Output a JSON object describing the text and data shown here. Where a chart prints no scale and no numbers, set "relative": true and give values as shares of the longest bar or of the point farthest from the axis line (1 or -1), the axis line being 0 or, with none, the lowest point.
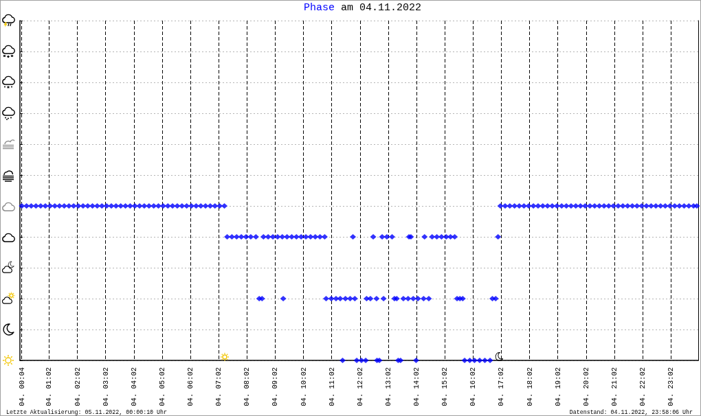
{
  "chart_data": {
    "type": "scatter",
    "title": "am 04.11.2022",
    "relative": true,
    "marker": "diamond",
    "grid": true,
    "legend": "top",
    "annotations": [
      "Letzte Aktualisierung: 05.11.2022, 00:00:10 Uhr",
      "Datenstand: 04.11.2022, 23:58:06 Uhr"
    ],
    "xlim": [
      "2022-11-04T00:00",
      "2022-11-05T00:00"
    ],
    "xticks": [
      {
        "value": "2022-11-04T00:04",
        "label": "04. 00:04"
      },
      {
        "value": "2022-11-04T01:02",
        "label": "04. 01:02"
      },
      {
        "value": "2022-11-04T02:02",
        "label": "04. 02:02"
      },
      {
        "value": "2022-11-04T03:02",
        "label": "04. 03:02"
      },
      {
        "value": "2022-11-04T04:02",
        "label": "04. 04:02"
      },
      {
        "value": "2022-11-04T05:02",
        "label": "04. 05:02"
      },
      {
        "value": "2022-11-04T06:02",
        "label": "04. 06:02"
      },
      {
        "value": "2022-11-04T07:02",
        "label": "04. 07:02"
      },
      {
        "value": "2022-11-04T08:02",
        "label": "04. 08:02"
      },
      {
        "value": "2022-11-04T09:02",
        "label": "04. 09:02"
      },
      {
        "value": "2022-11-04T10:02",
        "label": "04. 10:02"
      },
      {
        "value": "2022-11-04T11:02",
        "label": "04. 11:02"
      },
      {
        "value": "2022-11-04T12:02",
        "label": "04. 12:02"
      },
      {
        "value": "2022-11-04T13:02",
        "label": "04. 13:02"
      },
      {
        "value": "2022-11-04T14:02",
        "label": "04. 14:02"
      },
      {
        "value": "2022-11-04T15:02",
        "label": "04. 15:02"
      },
      {
        "value": "2022-11-04T16:02",
        "label": "04. 16:02"
      },
      {
        "value": "2022-11-04T17:02",
        "label": "04. 17:02"
      },
      {
        "value": "2022-11-04T18:02",
        "label": "04. 18:02"
      },
      {
        "value": "2022-11-04T19:02",
        "label": "04. 19:02"
      },
      {
        "value": "2022-11-04T20:02",
        "label": "04. 20:02"
      },
      {
        "value": "2022-11-04T21:02",
        "label": "04. 21:02"
      },
      {
        "value": "2022-11-04T22:02",
        "label": "04. 22:02"
      },
      {
        "value": "2022-11-04T23:02",
        "label": "04. 23:02"
      }
    ],
    "x": [
      "2022-11-04T00:04",
      "2022-11-04T00:14",
      "2022-11-04T00:24",
      "2022-11-04T00:34",
      "2022-11-04T00:44",
      "2022-11-04T00:54",
      "2022-11-04T01:04",
      "2022-11-04T01:14",
      "2022-11-04T01:24",
      "2022-11-04T01:34",
      "2022-11-04T01:44",
      "2022-11-04T01:54",
      "2022-11-04T02:04",
      "2022-11-04T02:14",
      "2022-11-04T02:24",
      "2022-11-04T02:34",
      "2022-11-04T02:44",
      "2022-11-04T02:54",
      "2022-11-04T03:04",
      "2022-11-04T03:14",
      "2022-11-04T03:24",
      "2022-11-04T03:34",
      "2022-11-04T03:44",
      "2022-11-04T03:54",
      "2022-11-04T04:04",
      "2022-11-04T04:14",
      "2022-11-04T04:24",
      "2022-11-04T04:34",
      "2022-11-04T04:44",
      "2022-11-04T04:54",
      "2022-11-04T05:04",
      "2022-11-04T05:14",
      "2022-11-04T05:24",
      "2022-11-04T05:34",
      "2022-11-04T05:44",
      "2022-11-04T05:54",
      "2022-11-04T06:04",
      "2022-11-04T06:14",
      "2022-11-04T06:24",
      "2022-11-04T06:34",
      "2022-11-04T06:44",
      "2022-11-04T06:54",
      "2022-11-04T07:04",
      "2022-11-04T07:14",
      "2022-11-04T07:20",
      "2022-11-04T07:30",
      "2022-11-04T07:40",
      "2022-11-04T07:50",
      "2022-11-04T08:00",
      "2022-11-04T08:10",
      "2022-11-04T08:21",
      "2022-11-04T08:28",
      "2022-11-04T08:34",
      "2022-11-04T08:37",
      "2022-11-04T08:47",
      "2022-11-04T08:57",
      "2022-11-04T09:07",
      "2022-11-04T09:17",
      "2022-11-04T09:19",
      "2022-11-04T09:27",
      "2022-11-04T09:37",
      "2022-11-04T09:47",
      "2022-11-04T09:57",
      "2022-11-04T10:07",
      "2022-11-04T10:17",
      "2022-11-04T10:27",
      "2022-11-04T10:37",
      "2022-11-04T10:47",
      "2022-11-04T10:50",
      "2022-11-04T11:01",
      "2022-11-04T11:11",
      "2022-11-04T11:20",
      "2022-11-04T11:25",
      "2022-11-04T11:31",
      "2022-11-04T11:41",
      "2022-11-04T11:47",
      "2022-11-04T11:51",
      "2022-11-04T11:55",
      "2022-11-04T12:05",
      "2022-11-04T12:14",
      "2022-11-04T12:16",
      "2022-11-04T12:24",
      "2022-11-04T12:30",
      "2022-11-04T12:37",
      "2022-11-04T12:38",
      "2022-11-04T12:43",
      "2022-11-04T12:49",
      "2022-11-04T12:52",
      "2022-11-04T12:59",
      "2022-11-04T13:10",
      "2022-11-04T13:15",
      "2022-11-04T13:20",
      "2022-11-04T13:23",
      "2022-11-04T13:28",
      "2022-11-04T13:34",
      "2022-11-04T13:44",
      "2022-11-04T13:46",
      "2022-11-04T13:50",
      "2022-11-04T13:55",
      "2022-11-04T14:01",
      "2022-11-04T14:05",
      "2022-11-04T14:17",
      "2022-11-04T14:19",
      "2022-11-04T14:28",
      "2022-11-04T14:35",
      "2022-11-04T14:45",
      "2022-11-04T14:55",
      "2022-11-04T15:05",
      "2022-11-04T15:14",
      "2022-11-04T15:23",
      "2022-11-04T15:28",
      "2022-11-04T15:34",
      "2022-11-04T15:40",
      "2022-11-04T15:44",
      "2022-11-04T15:55",
      "2022-11-04T16:05",
      "2022-11-04T16:16",
      "2022-11-04T16:27",
      "2022-11-04T16:38",
      "2022-11-04T16:43",
      "2022-11-04T16:50",
      "2022-11-04T16:55",
      "2022-11-04T17:00",
      "2022-11-04T17:10",
      "2022-11-04T17:20",
      "2022-11-04T17:30",
      "2022-11-04T17:40",
      "2022-11-04T17:50",
      "2022-11-04T18:00",
      "2022-11-04T18:10",
      "2022-11-04T18:20",
      "2022-11-04T18:30",
      "2022-11-04T18:40",
      "2022-11-04T18:50",
      "2022-11-04T19:00",
      "2022-11-04T19:10",
      "2022-11-04T19:20",
      "2022-11-04T19:30",
      "2022-11-04T19:40",
      "2022-11-04T19:50",
      "2022-11-04T20:00",
      "2022-11-04T20:10",
      "2022-11-04T20:20",
      "2022-11-04T20:30",
      "2022-11-04T20:40",
      "2022-11-04T20:50",
      "2022-11-04T21:00",
      "2022-11-04T21:10",
      "2022-11-04T21:20",
      "2022-11-04T21:30",
      "2022-11-04T21:40",
      "2022-11-04T21:50",
      "2022-11-04T22:00",
      "2022-11-04T22:10",
      "2022-11-04T22:20",
      "2022-11-04T22:30",
      "2022-11-04T22:40",
      "2022-11-04T22:50",
      "2022-11-04T23:00",
      "2022-11-04T23:10",
      "2022-11-04T23:20",
      "2022-11-04T23:30",
      "2022-11-04T23:40",
      "2022-11-04T23:50",
      "2022-11-04T23:57"
    ],
    "series": [
      {
        "name": "Phase",
        "color": "#0000ff",
        "values": [
          1,
          1,
          1,
          1,
          1,
          1,
          1,
          1,
          1,
          1,
          1,
          1,
          1,
          1,
          1,
          1,
          1,
          1,
          1,
          1,
          1,
          1,
          1,
          1,
          1,
          1,
          1,
          1,
          1,
          1,
          1,
          1,
          1,
          1,
          1,
          1,
          1,
          1,
          1,
          1,
          1,
          1,
          1,
          1,
          0.8,
          0.8,
          0.8,
          0.8,
          0.8,
          0.8,
          0.8,
          0.4,
          0.4,
          0.8,
          0.8,
          0.8,
          0.8,
          0.8,
          0.4,
          0.8,
          0.8,
          0.8,
          0.8,
          0.8,
          0.8,
          0.8,
          0.8,
          0.8,
          0.4,
          0.4,
          0.4,
          0.4,
          0,
          0.4,
          0.4,
          0.8,
          0.4,
          0,
          0,
          0,
          0.4,
          0.4,
          0.8,
          0.4,
          0,
          0,
          0.8,
          0.4,
          0.8,
          0.8,
          0.4,
          0.4,
          0,
          0,
          0.4,
          0.4,
          0.8,
          0.8,
          0.4,
          0,
          0.4,
          0.4,
          0.8,
          0.4,
          0.8,
          0.8,
          0.8,
          0.8,
          0.8,
          0.8,
          0.4,
          0.4,
          0.4,
          0,
          0,
          0,
          0,
          0,
          0,
          0.4,
          0.4,
          0.8,
          1,
          1,
          1,
          1,
          1,
          1,
          1,
          1,
          1,
          1,
          1,
          1,
          1,
          1,
          1,
          1,
          1,
          1,
          1,
          1,
          1,
          1,
          1,
          1,
          1,
          1,
          1,
          1,
          1,
          1,
          1,
          1,
          1,
          1,
          1,
          1,
          1,
          1,
          1,
          1,
          1,
          1,
          1
        ]
      }
    ]
  }
}
